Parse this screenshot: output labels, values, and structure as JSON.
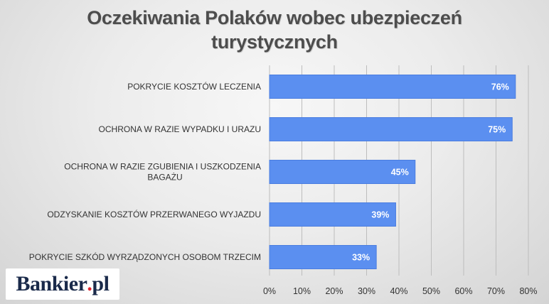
{
  "chart_data": {
    "type": "bar",
    "orientation": "horizontal",
    "title_line1": "Oczekiwania Polaków wobec ubezpieczeń",
    "title_line2": "turystycznych",
    "categories": [
      [
        "POKRYCIE KOSZTÓW LECZENIA"
      ],
      [
        "OCHRONA W RAZIE WYPADKU I URAZU"
      ],
      [
        "OCHRONA W RAZIE ZGUBIENIA I USZKODZENIA",
        "BAGAŻU"
      ],
      [
        "ODZYSKANIE KOSZTÓW PRZERWANEGO WYJAZDU"
      ],
      [
        "POKRYCIE SZKÓD WYRZĄDZONYCH OSOBOM TRZECIM"
      ]
    ],
    "values": [
      76,
      75,
      45,
      39,
      33
    ],
    "data_labels": [
      "76%",
      "75%",
      "45%",
      "39%",
      "33%"
    ],
    "xlim": [
      0,
      80
    ],
    "x_ticks": [
      "0%",
      "10%",
      "20%",
      "30%",
      "40%",
      "50%",
      "60%",
      "70%",
      "80%"
    ],
    "grid": true,
    "bar_color": "#5b8ff0",
    "bar_stroke": "#4a7de0",
    "grid_color": "#bdbdbd"
  },
  "logo": {
    "name": "Bankier",
    "dot": ".",
    "tld": "pl"
  }
}
